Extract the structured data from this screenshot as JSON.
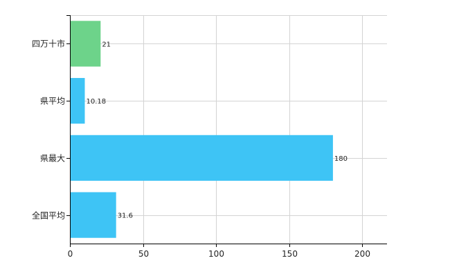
{
  "chart_data": {
    "type": "bar",
    "orientation": "horizontal",
    "categories": [
      "四万十市",
      "県平均",
      "県最大",
      "全国平均"
    ],
    "values": [
      21,
      10.18,
      180,
      31.6
    ],
    "value_labels": [
      "21",
      "10.18",
      "180",
      "31.6"
    ],
    "bar_colors": [
      "#6dd38a",
      "#3ec4f5",
      "#3ec4f5",
      "#3ec4f5"
    ],
    "xlim": [
      0,
      217
    ],
    "x_ticks": [
      0,
      50,
      100,
      150,
      200
    ],
    "grid": true,
    "grid_color": "#d3d3d3",
    "title": "",
    "xlabel": "",
    "ylabel": ""
  }
}
